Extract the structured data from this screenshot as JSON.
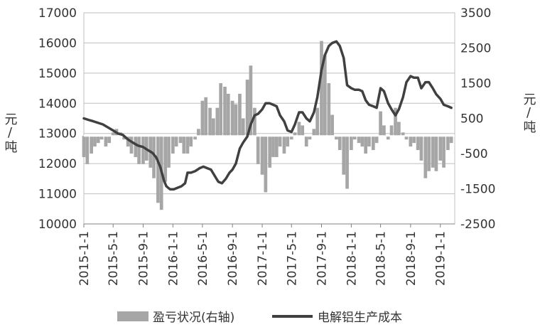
{
  "chart_data": {
    "type": "bar+line",
    "title": "",
    "ylabel_left": "元/吨",
    "ylabel_right": "元/吨",
    "y_left_range": [
      10000,
      17000
    ],
    "y_left_ticks": [
      10000,
      11000,
      12000,
      13000,
      14000,
      15000,
      16000,
      17000
    ],
    "y_right_range": [
      -2500,
      3500
    ],
    "y_right_ticks": [
      -2500,
      -1500,
      -500,
      500,
      1500,
      2500,
      3500
    ],
    "x_range": [
      "2015-01-01",
      "2019-03-01"
    ],
    "x_ticks": [
      "2015-1-1",
      "2015-5-1",
      "2015-9-1",
      "2016-1-1",
      "2016-5-1",
      "2016-9-1",
      "2017-1-1",
      "2017-5-1",
      "2017-9-1",
      "2018-1-1",
      "2018-5-1",
      "2018-9-1",
      "2019-1-1"
    ],
    "grid": "horizontal",
    "legend_position": "bottom",
    "colors": {
      "bars": "#a6a6a6",
      "line": "#404040",
      "grid": "#bfbfbf",
      "zero_line": "#ffffff"
    },
    "series": [
      {
        "name": "盈亏状况(右轴)",
        "type": "bar",
        "axis": "right",
        "data": [
          [
            "2015-01-01",
            -600
          ],
          [
            "2015-01-15",
            -800
          ],
          [
            "2015-02-01",
            -500
          ],
          [
            "2015-02-15",
            -300
          ],
          [
            "2015-03-01",
            -200
          ],
          [
            "2015-03-15",
            -100
          ],
          [
            "2015-04-01",
            -300
          ],
          [
            "2015-04-15",
            -200
          ],
          [
            "2015-05-01",
            100
          ],
          [
            "2015-05-15",
            200
          ],
          [
            "2015-06-01",
            100
          ],
          [
            "2015-06-15",
            -100
          ],
          [
            "2015-07-01",
            -300
          ],
          [
            "2015-07-15",
            -500
          ],
          [
            "2015-08-01",
            -600
          ],
          [
            "2015-08-15",
            -800
          ],
          [
            "2015-09-01",
            -800
          ],
          [
            "2015-09-15",
            -700
          ],
          [
            "2015-10-01",
            -900
          ],
          [
            "2015-10-15",
            -1200
          ],
          [
            "2015-11-01",
            -1900
          ],
          [
            "2015-11-15",
            -2100
          ],
          [
            "2015-12-01",
            -1300
          ],
          [
            "2015-12-15",
            -900
          ],
          [
            "2016-01-01",
            -500
          ],
          [
            "2016-01-15",
            -300
          ],
          [
            "2016-02-01",
            -200
          ],
          [
            "2016-02-15",
            -500
          ],
          [
            "2016-03-01",
            -500
          ],
          [
            "2016-03-15",
            -300
          ],
          [
            "2016-04-01",
            -100
          ],
          [
            "2016-04-15",
            200
          ],
          [
            "2016-05-01",
            1000
          ],
          [
            "2016-05-15",
            1100
          ],
          [
            "2016-06-01",
            800
          ],
          [
            "2016-06-15",
            500
          ],
          [
            "2016-07-01",
            800
          ],
          [
            "2016-07-15",
            1500
          ],
          [
            "2016-08-01",
            1400
          ],
          [
            "2016-08-15",
            1200
          ],
          [
            "2016-09-01",
            1000
          ],
          [
            "2016-09-15",
            900
          ],
          [
            "2016-10-01",
            1200
          ],
          [
            "2016-10-15",
            500
          ],
          [
            "2016-11-01",
            1600
          ],
          [
            "2016-11-15",
            2000
          ],
          [
            "2016-12-01",
            800
          ],
          [
            "2016-12-15",
            -800
          ],
          [
            "2017-01-01",
            -1100
          ],
          [
            "2017-01-15",
            -1600
          ],
          [
            "2017-02-01",
            -900
          ],
          [
            "2017-02-15",
            -600
          ],
          [
            "2017-03-01",
            -600
          ],
          [
            "2017-03-15",
            -300
          ],
          [
            "2017-04-01",
            -500
          ],
          [
            "2017-04-15",
            -300
          ],
          [
            "2017-05-01",
            -100
          ],
          [
            "2017-05-15",
            100
          ],
          [
            "2017-06-01",
            400
          ],
          [
            "2017-06-15",
            300
          ],
          [
            "2017-07-01",
            -300
          ],
          [
            "2017-07-15",
            -100
          ],
          [
            "2017-08-01",
            200
          ],
          [
            "2017-08-15",
            800
          ],
          [
            "2017-09-01",
            2700
          ],
          [
            "2017-09-15",
            2300
          ],
          [
            "2017-10-01",
            1500
          ],
          [
            "2017-10-15",
            600
          ],
          [
            "2017-11-01",
            -100
          ],
          [
            "2017-11-15",
            -400
          ],
          [
            "2017-12-01",
            -1100
          ],
          [
            "2017-12-15",
            -1500
          ],
          [
            "2018-01-01",
            -400
          ],
          [
            "2018-01-15",
            -100
          ],
          [
            "2018-02-01",
            -200
          ],
          [
            "2018-02-15",
            -300
          ],
          [
            "2018-03-01",
            -500
          ],
          [
            "2018-03-15",
            -300
          ],
          [
            "2018-04-01",
            -400
          ],
          [
            "2018-04-15",
            -200
          ],
          [
            "2018-05-01",
            700
          ],
          [
            "2018-05-15",
            300
          ],
          [
            "2018-06-01",
            -100
          ],
          [
            "2018-06-15",
            300
          ],
          [
            "2018-07-01",
            800
          ],
          [
            "2018-07-15",
            400
          ],
          [
            "2018-08-01",
            100
          ],
          [
            "2018-08-15",
            -100
          ],
          [
            "2018-09-01",
            -300
          ],
          [
            "2018-09-15",
            -200
          ],
          [
            "2018-10-01",
            -400
          ],
          [
            "2018-10-15",
            -700
          ],
          [
            "2018-11-01",
            -1200
          ],
          [
            "2018-11-15",
            -1000
          ],
          [
            "2018-12-01",
            -900
          ],
          [
            "2018-12-15",
            -1000
          ],
          [
            "2019-01-01",
            -700
          ],
          [
            "2019-01-15",
            -900
          ],
          [
            "2019-02-01",
            -400
          ],
          [
            "2019-02-15",
            -200
          ]
        ]
      },
      {
        "name": "电解铝生产成本",
        "type": "line",
        "axis": "left",
        "data": [
          [
            "2015-01-01",
            13500
          ],
          [
            "2015-01-20",
            13450
          ],
          [
            "2015-02-10",
            13400
          ],
          [
            "2015-03-01",
            13350
          ],
          [
            "2015-03-20",
            13300
          ],
          [
            "2015-04-10",
            13200
          ],
          [
            "2015-05-01",
            13100
          ],
          [
            "2015-05-20",
            13000
          ],
          [
            "2015-06-10",
            12950
          ],
          [
            "2015-07-01",
            12800
          ],
          [
            "2015-07-20",
            12700
          ],
          [
            "2015-08-10",
            12600
          ],
          [
            "2015-09-01",
            12550
          ],
          [
            "2015-09-20",
            12450
          ],
          [
            "2015-10-10",
            12350
          ],
          [
            "2015-10-25",
            12200
          ],
          [
            "2015-11-10",
            11900
          ],
          [
            "2015-11-25",
            11450
          ],
          [
            "2015-12-05",
            11250
          ],
          [
            "2015-12-20",
            11150
          ],
          [
            "2016-01-05",
            11150
          ],
          [
            "2016-01-20",
            11200
          ],
          [
            "2016-02-05",
            11250
          ],
          [
            "2016-02-20",
            11350
          ],
          [
            "2016-03-01",
            11700
          ],
          [
            "2016-03-15",
            11700
          ],
          [
            "2016-04-01",
            11750
          ],
          [
            "2016-04-20",
            11850
          ],
          [
            "2016-05-05",
            11900
          ],
          [
            "2016-05-20",
            11850
          ],
          [
            "2016-06-05",
            11800
          ],
          [
            "2016-06-20",
            11600
          ],
          [
            "2016-07-05",
            11400
          ],
          [
            "2016-07-20",
            11350
          ],
          [
            "2016-08-05",
            11500
          ],
          [
            "2016-08-20",
            11700
          ],
          [
            "2016-09-01",
            11800
          ],
          [
            "2016-09-15",
            12000
          ],
          [
            "2016-10-01",
            12500
          ],
          [
            "2016-10-15",
            12700
          ],
          [
            "2016-11-01",
            12900
          ],
          [
            "2016-11-15",
            13300
          ],
          [
            "2016-12-01",
            13600
          ],
          [
            "2016-12-15",
            13650
          ],
          [
            "2017-01-01",
            13800
          ],
          [
            "2017-01-15",
            14000
          ],
          [
            "2017-02-01",
            14000
          ],
          [
            "2017-02-15",
            13950
          ],
          [
            "2017-03-01",
            13900
          ],
          [
            "2017-03-15",
            13600
          ],
          [
            "2017-04-01",
            13400
          ],
          [
            "2017-04-15",
            13100
          ],
          [
            "2017-05-01",
            13050
          ],
          [
            "2017-05-15",
            13300
          ],
          [
            "2017-06-01",
            13700
          ],
          [
            "2017-06-15",
            13700
          ],
          [
            "2017-07-01",
            13500
          ],
          [
            "2017-07-15",
            13400
          ],
          [
            "2017-08-01",
            13700
          ],
          [
            "2017-08-15",
            14200
          ],
          [
            "2017-09-01",
            15100
          ],
          [
            "2017-09-15",
            15600
          ],
          [
            "2017-10-01",
            15900
          ],
          [
            "2017-10-15",
            16000
          ],
          [
            "2017-11-01",
            16050
          ],
          [
            "2017-11-15",
            15900
          ],
          [
            "2017-12-01",
            15500
          ],
          [
            "2017-12-15",
            14600
          ],
          [
            "2018-01-01",
            14500
          ],
          [
            "2018-01-15",
            14450
          ],
          [
            "2018-02-01",
            14450
          ],
          [
            "2018-02-15",
            14400
          ],
          [
            "2018-03-01",
            14100
          ],
          [
            "2018-03-15",
            13950
          ],
          [
            "2018-04-01",
            13900
          ],
          [
            "2018-04-15",
            13850
          ],
          [
            "2018-05-01",
            14500
          ],
          [
            "2018-05-15",
            14400
          ],
          [
            "2018-06-01",
            14000
          ],
          [
            "2018-06-15",
            13800
          ],
          [
            "2018-07-01",
            13600
          ],
          [
            "2018-07-15",
            13800
          ],
          [
            "2018-08-01",
            14200
          ],
          [
            "2018-08-15",
            14700
          ],
          [
            "2018-09-01",
            14900
          ],
          [
            "2018-09-15",
            14850
          ],
          [
            "2018-10-01",
            14850
          ],
          [
            "2018-10-15",
            14500
          ],
          [
            "2018-11-01",
            14700
          ],
          [
            "2018-11-15",
            14700
          ],
          [
            "2018-12-01",
            14500
          ],
          [
            "2018-12-15",
            14300
          ],
          [
            "2019-01-01",
            14150
          ],
          [
            "2019-01-15",
            13950
          ],
          [
            "2019-02-01",
            13900
          ],
          [
            "2019-02-15",
            13850
          ]
        ]
      }
    ]
  }
}
